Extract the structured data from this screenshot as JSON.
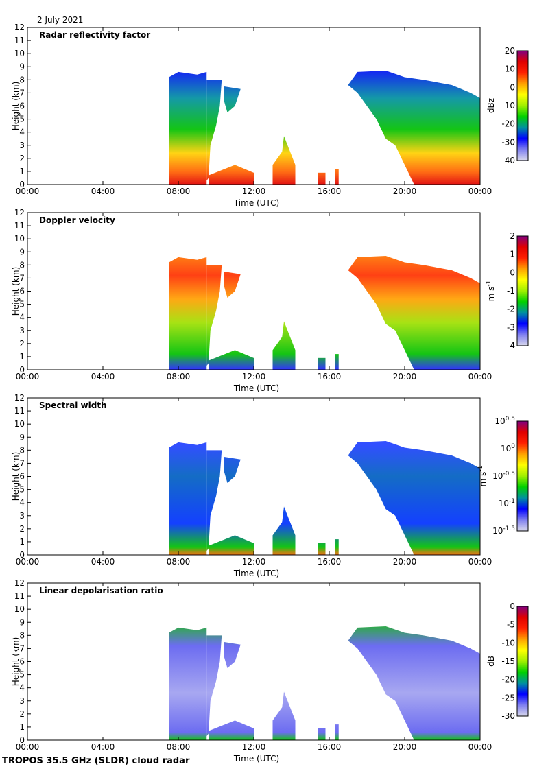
{
  "date_label": "2 July 2021",
  "footer": "TROPOS 35.5 GHz (SLDR) cloud radar",
  "chart_data": [
    {
      "type": "heatmap",
      "title": "Radar reflectivity factor",
      "xlabel": "Time (UTC)",
      "ylabel": "Height (km)",
      "xlim": [
        "00:00",
        "24:00"
      ],
      "xticks": [
        "00:00",
        "04:00",
        "08:00",
        "12:00",
        "16:00",
        "20:00",
        "00:00"
      ],
      "ylim": [
        0,
        12
      ],
      "yticks": [
        "0",
        "1",
        "2",
        "3",
        "4",
        "5",
        "6",
        "7",
        "8",
        "9",
        "10",
        "11",
        "12"
      ],
      "colorbar": {
        "unit": "dBz",
        "unit_sup": "",
        "range": [
          -40,
          20
        ],
        "scale": "linear",
        "ticks": [
          {
            "base": "20",
            "sup": ""
          },
          {
            "base": "10",
            "sup": ""
          },
          {
            "base": "0",
            "sup": ""
          },
          {
            "base": "-10",
            "sup": ""
          },
          {
            "base": "-20",
            "sup": ""
          },
          {
            "base": "-30",
            "sup": ""
          },
          {
            "base": "-40",
            "sup": ""
          }
        ]
      }
    },
    {
      "type": "heatmap",
      "title": "Doppler velocity",
      "xlabel": "Time (UTC)",
      "ylabel": "Height (km)",
      "xlim": [
        "00:00",
        "24:00"
      ],
      "xticks": [
        "00:00",
        "04:00",
        "08:00",
        "12:00",
        "16:00",
        "20:00",
        "00:00"
      ],
      "ylim": [
        0,
        12
      ],
      "yticks": [
        "0",
        "1",
        "2",
        "3",
        "4",
        "5",
        "6",
        "7",
        "8",
        "9",
        "10",
        "11",
        "12"
      ],
      "colorbar": {
        "unit": "m s",
        "unit_sup": "-1",
        "range": [
          -4,
          2
        ],
        "scale": "linear",
        "ticks": [
          {
            "base": "2",
            "sup": ""
          },
          {
            "base": "1",
            "sup": ""
          },
          {
            "base": "0",
            "sup": ""
          },
          {
            "base": "-1",
            "sup": ""
          },
          {
            "base": "-2",
            "sup": ""
          },
          {
            "base": "-3",
            "sup": ""
          },
          {
            "base": "-4",
            "sup": ""
          }
        ]
      }
    },
    {
      "type": "heatmap",
      "title": "Spectral width",
      "xlabel": "Time (UTC)",
      "ylabel": "Height (km)",
      "xlim": [
        "00:00",
        "24:00"
      ],
      "xticks": [
        "00:00",
        "04:00",
        "08:00",
        "12:00",
        "16:00",
        "20:00",
        "00:00"
      ],
      "ylim": [
        0,
        12
      ],
      "yticks": [
        "0",
        "1",
        "2",
        "3",
        "4",
        "5",
        "6",
        "7",
        "8",
        "9",
        "10",
        "11",
        "12"
      ],
      "colorbar": {
        "unit": "m s",
        "unit_sup": "-1",
        "range": [
          -1.5,
          0.5
        ],
        "scale": "log10",
        "ticks": [
          {
            "base": "10",
            "sup": "0.5"
          },
          {
            "base": "10",
            "sup": "0"
          },
          {
            "base": "10",
            "sup": "-0.5"
          },
          {
            "base": "10",
            "sup": "-1"
          },
          {
            "base": "10",
            "sup": "-1.5"
          }
        ]
      }
    },
    {
      "type": "heatmap",
      "title": "Linear depolarisation ratio",
      "xlabel": "Time (UTC)",
      "ylabel": "Height (km)",
      "xlim": [
        "00:00",
        "24:00"
      ],
      "xticks": [
        "00:00",
        "04:00",
        "08:00",
        "12:00",
        "16:00",
        "20:00",
        "00:00"
      ],
      "ylim": [
        0,
        12
      ],
      "yticks": [
        "0",
        "1",
        "2",
        "3",
        "4",
        "5",
        "6",
        "7",
        "8",
        "9",
        "10",
        "11",
        "12"
      ],
      "colorbar": {
        "unit": "dB",
        "unit_sup": "",
        "range": [
          -30,
          0
        ],
        "scale": "linear",
        "ticks": [
          {
            "base": "0",
            "sup": ""
          },
          {
            "base": "-5",
            "sup": ""
          },
          {
            "base": "-10",
            "sup": ""
          },
          {
            "base": "-15",
            "sup": ""
          },
          {
            "base": "-20",
            "sup": ""
          },
          {
            "base": "-25",
            "sup": ""
          },
          {
            "base": "-30",
            "sup": ""
          }
        ]
      }
    }
  ],
  "colormap": [
    "#d8d8ec",
    "#8080f0",
    "#0000ff",
    "#0090a0",
    "#00d000",
    "#a0f000",
    "#ffff00",
    "#ffa000",
    "#ff2000",
    "#e00000",
    "#800080"
  ]
}
